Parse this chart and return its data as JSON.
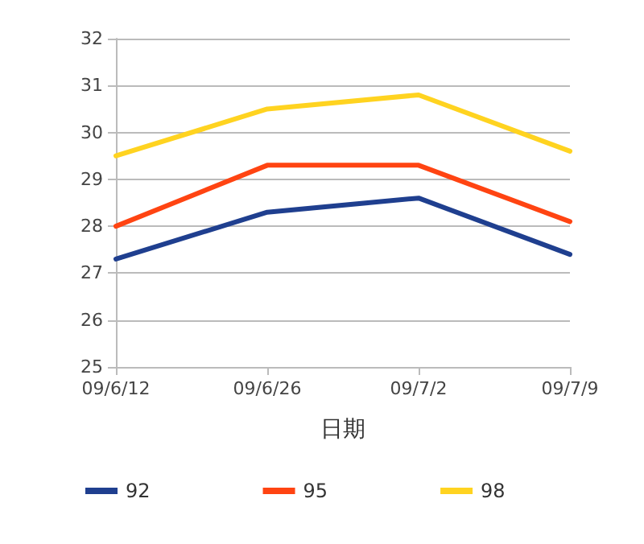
{
  "chart_data": {
    "type": "line",
    "xlabel": "日期",
    "categories": [
      "09/6/12",
      "09/6/26",
      "09/7/2",
      "09/7/9"
    ],
    "series": [
      {
        "name": "92",
        "color": "#1f3f8f",
        "values": [
          27.3,
          28.3,
          28.6,
          27.4
        ]
      },
      {
        "name": "95",
        "color": "#ff4412",
        "values": [
          28.0,
          29.3,
          29.3,
          28.1
        ]
      },
      {
        "name": "98",
        "color": "#ffd320",
        "values": [
          29.5,
          30.5,
          30.8,
          29.6
        ]
      }
    ],
    "ylim": [
      25,
      32
    ],
    "yticks": [
      25,
      26,
      27,
      28,
      29,
      30,
      31,
      32
    ],
    "grid": "y",
    "legend": "bottom",
    "marker": "none",
    "line_style": "solid"
  }
}
